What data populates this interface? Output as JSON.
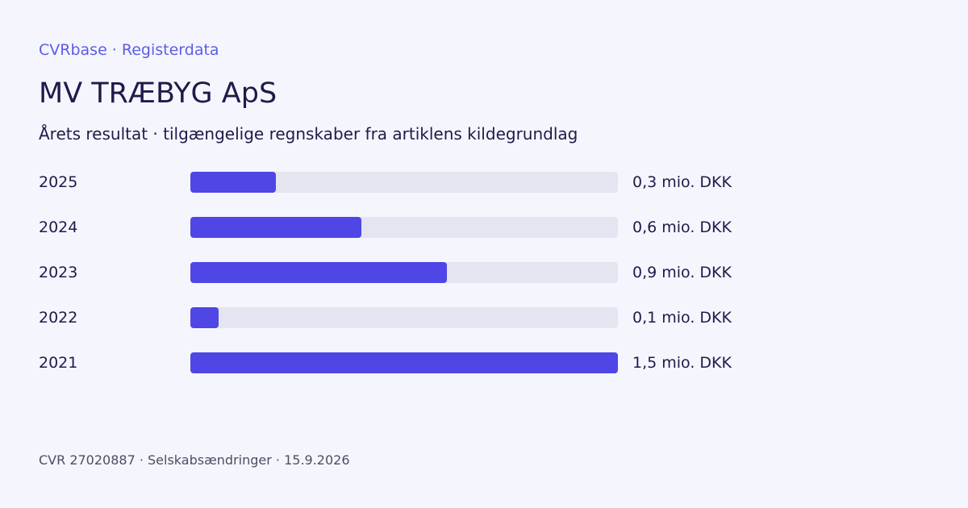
{
  "header": {
    "brand": "CVRbase · Registerdata",
    "title": "MV TRÆBYG ApS",
    "subtitle": "Årets resultat · tilgængelige regnskaber fra artiklens kildegrundlag"
  },
  "chart_data": {
    "type": "bar",
    "orientation": "horizontal",
    "title": "Årets resultat · tilgængelige regnskaber fra artiklens kildegrundlag",
    "categories": [
      "2025",
      "2024",
      "2023",
      "2022",
      "2021"
    ],
    "values": [
      0.3,
      0.6,
      0.9,
      0.1,
      1.5
    ],
    "value_labels": [
      "0,3 mio. DKK",
      "0,6 mio. DKK",
      "0,9 mio. DKK",
      "0,1 mio. DKK",
      "1,5 mio. DKK"
    ],
    "unit": "mio. DKK",
    "xlim": [
      0,
      1.5
    ],
    "grid": false,
    "bar_color": "#4f46e5",
    "track_color": "#e4e5f1"
  },
  "footer": {
    "text": "CVR 27020887 · Selskabsændringer · 15.9.2026"
  }
}
